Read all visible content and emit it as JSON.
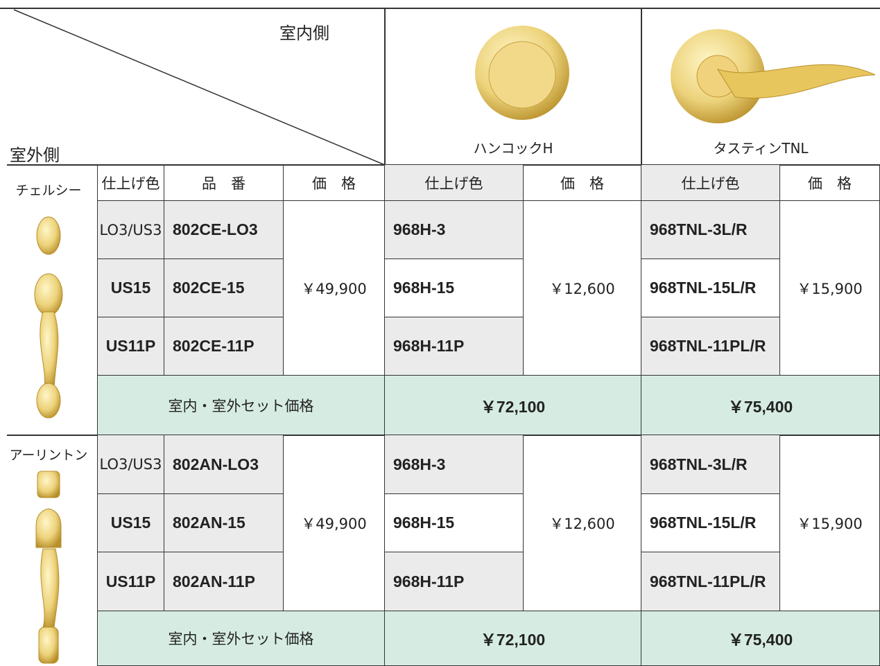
{
  "header": {
    "inside_label": "室内側",
    "outside_label": "室外側",
    "products": [
      "ハンコックH",
      "タスティンTNL"
    ]
  },
  "subheader": [
    "仕上げ色",
    "品　番",
    "価　格",
    "仕上げ色",
    "価　格",
    "仕上げ色",
    "価　格"
  ],
  "sections": [
    {
      "name": "チェルシー",
      "rows": [
        [
          "LO3/US3",
          "802CE-LO3",
          "968H-3",
          "968TNL-3L/R"
        ],
        [
          "US15",
          "802CE-15",
          "968H-15",
          "968TNL-15L/R"
        ],
        [
          "US11P",
          "802CE-11P",
          "968H-11P",
          "968TNL-11PL/R"
        ]
      ],
      "prices": [
        "￥49,900",
        "￥12,600",
        "￥15,900"
      ],
      "set_label": "室内・室外セット価格",
      "set_prices": [
        "￥72,100",
        "￥75,400"
      ]
    },
    {
      "name": "アーリントン",
      "rows": [
        [
          "LO3/US3",
          "802AN-LO3",
          "968H-3",
          "968TNL-3L/R"
        ],
        [
          "US15",
          "802AN-15",
          "968H-15",
          "968TNL-15L/R"
        ],
        [
          "US11P",
          "802AN-11P",
          "968H-11P",
          "968TNL-11PL/R"
        ]
      ],
      "prices": [
        "￥49,900",
        "￥12,600",
        "￥15,900"
      ],
      "set_label": "室内・室外セット価格",
      "set_prices": [
        "￥72,100",
        "￥75,400"
      ]
    }
  ]
}
